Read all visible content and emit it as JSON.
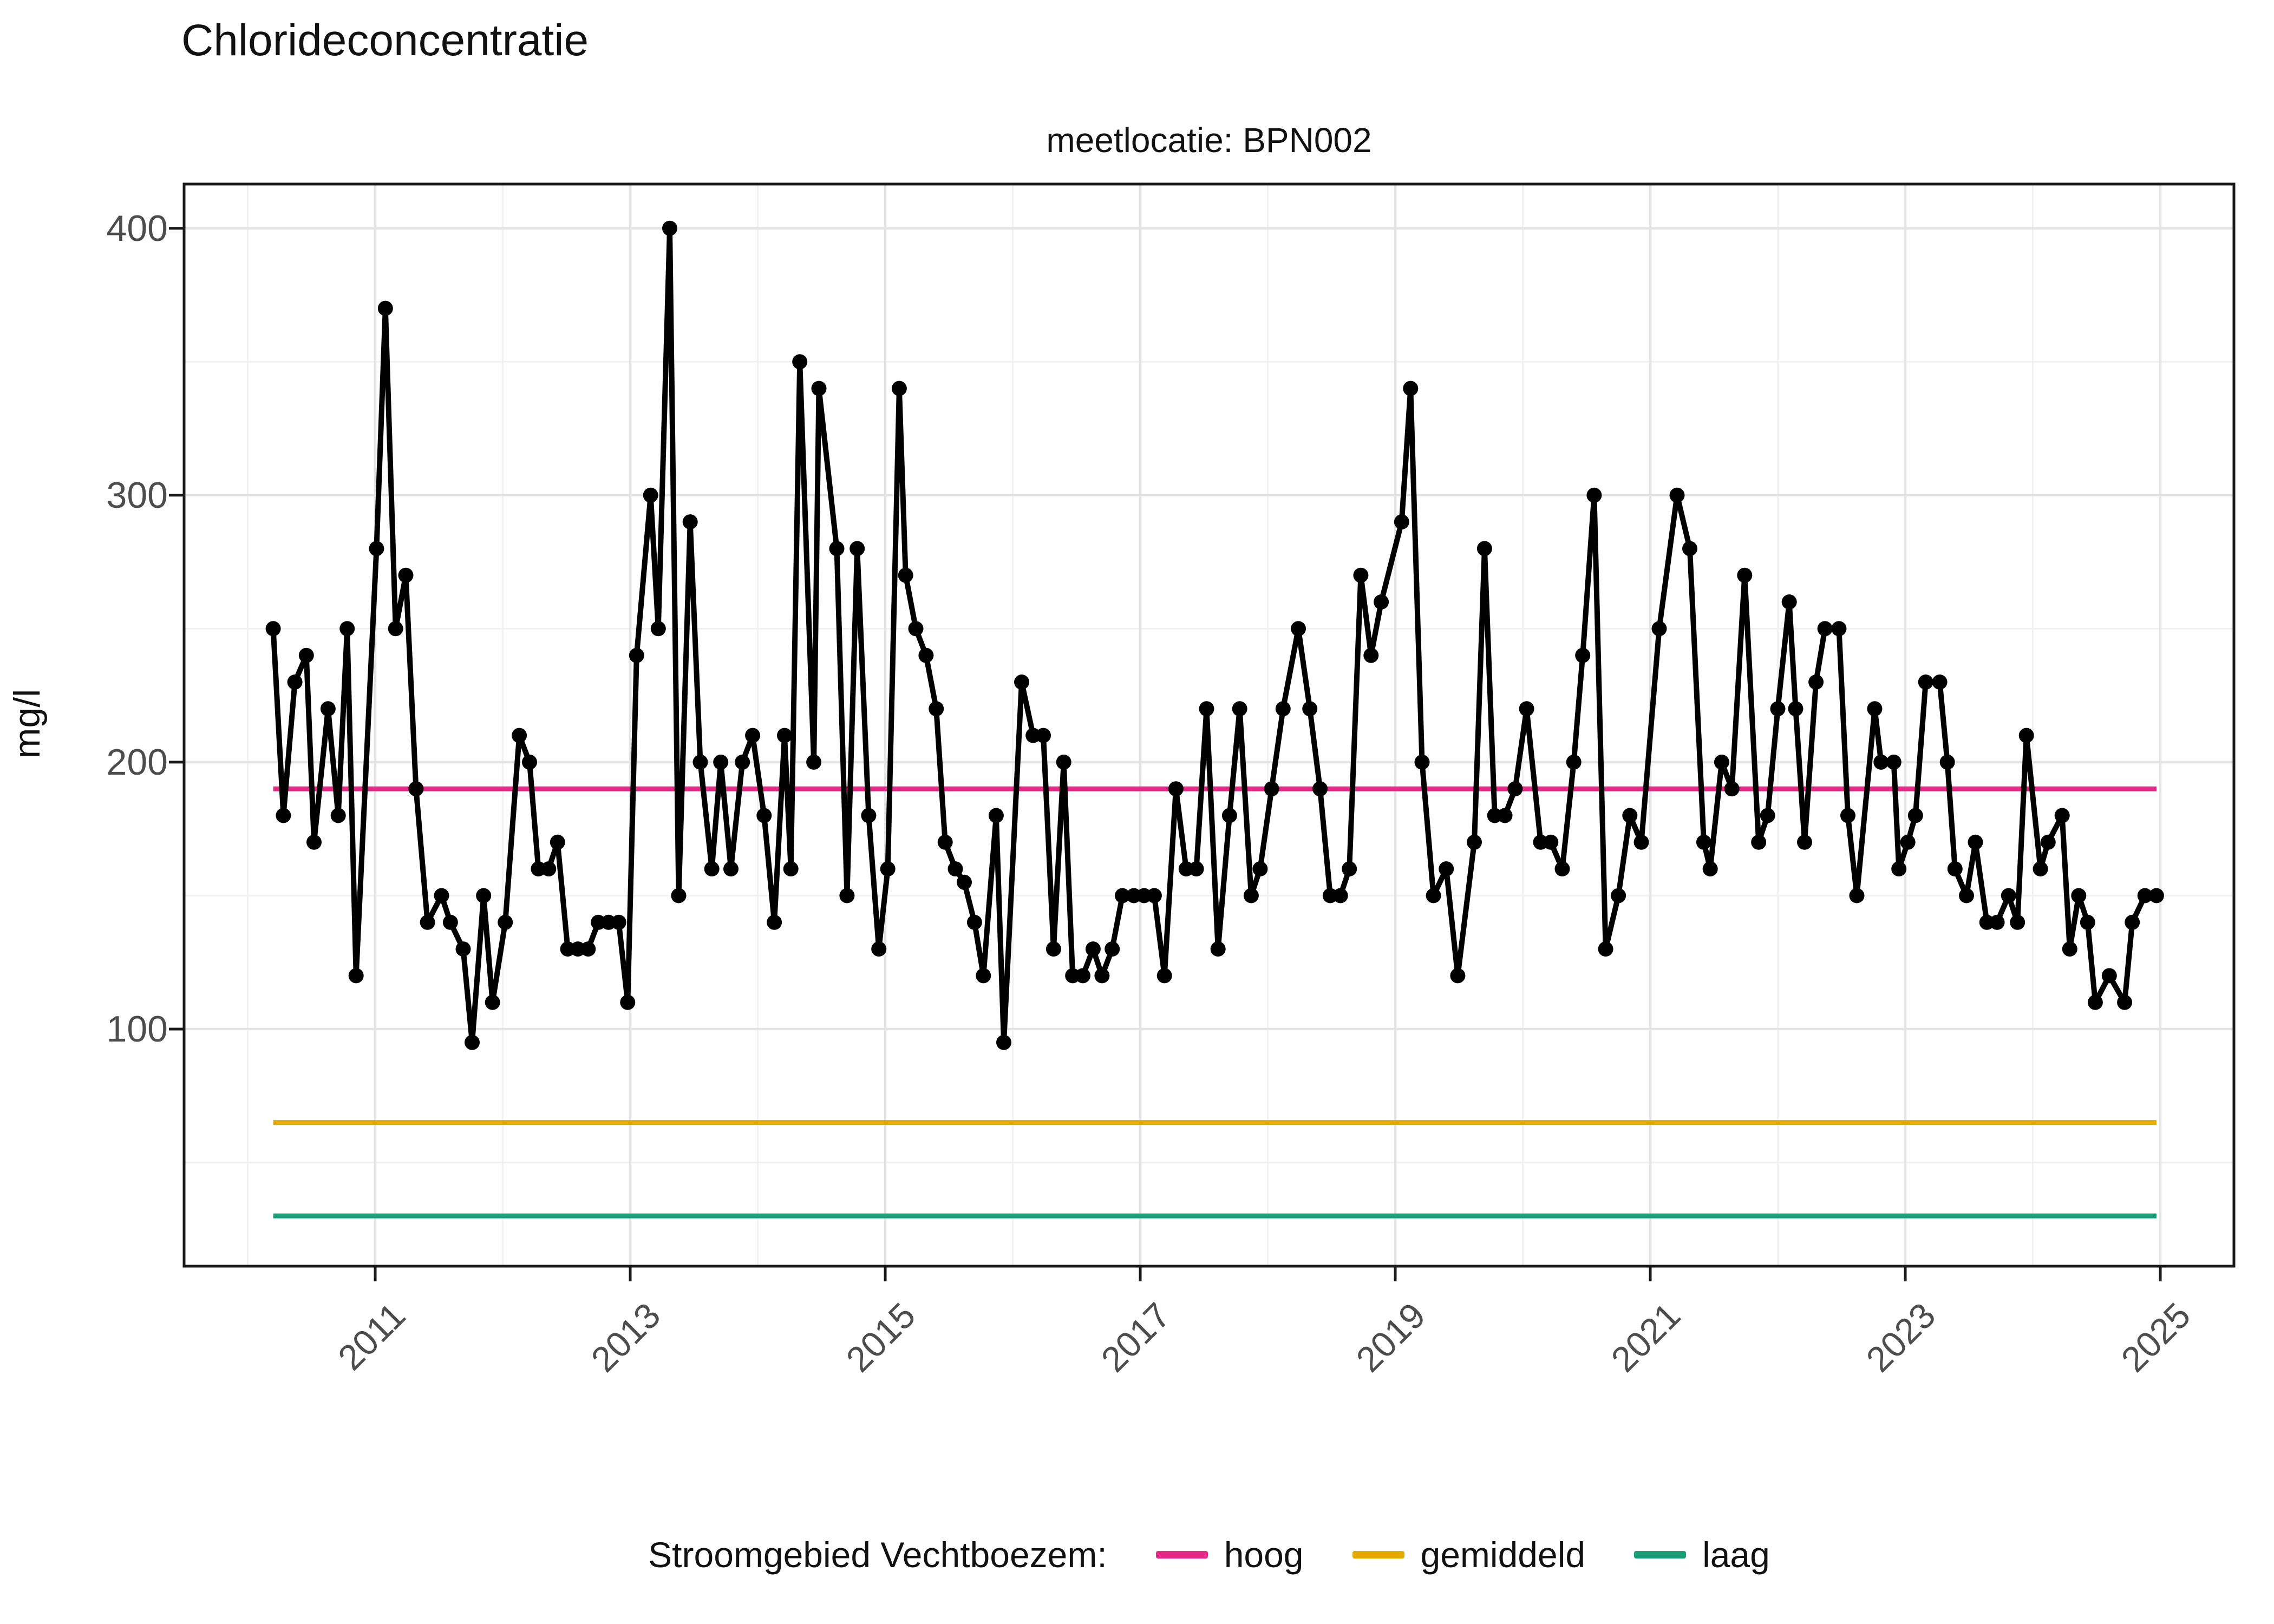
{
  "header": {
    "title": "Chlorideconcentratie",
    "subtitle": "meetlocatie: BPN002"
  },
  "axes": {
    "y_title": "mg/l",
    "y_ticks": [
      100,
      200,
      300,
      400
    ],
    "x_ticks": [
      2011,
      2013,
      2015,
      2017,
      2019,
      2021,
      2023,
      2025
    ]
  },
  "legend": {
    "title": "Stroomgebied Vechtboezem:",
    "items": [
      {
        "label": "hoog",
        "color": "#E7298A"
      },
      {
        "label": "gemiddeld",
        "color": "#E6AB02"
      },
      {
        "label": "laag",
        "color": "#1B9E77"
      }
    ]
  },
  "chart_data": {
    "type": "line",
    "title": "Chlorideconcentratie",
    "subtitle": "meetlocatie: BPN002",
    "xlabel": "",
    "ylabel": "mg/l",
    "xlim": [
      2009.5,
      2025.58
    ],
    "ylim": [
      11,
      417
    ],
    "grid": "on",
    "legend_position": "bottom",
    "x_major_ticks": [
      2011,
      2013,
      2015,
      2017,
      2019,
      2021,
      2023,
      2025
    ],
    "x_minor_ticks": [
      2010,
      2012,
      2014,
      2016,
      2018,
      2020,
      2022,
      2024
    ],
    "y_major_ticks": [
      100,
      200,
      300,
      400
    ],
    "y_minor_ticks": [
      50,
      150,
      250,
      350
    ],
    "reference_lines": [
      {
        "name": "hoog",
        "value": 190,
        "color": "#E7298A"
      },
      {
        "name": "gemiddeld",
        "value": 65,
        "color": "#E6AB02"
      },
      {
        "name": "laag",
        "value": 30,
        "color": "#1B9E77"
      }
    ],
    "series": [
      {
        "name": "chlorideconcentratie BPN002",
        "color": "#000000",
        "points": [
          [
            2010.2,
            250
          ],
          [
            2010.28,
            180
          ],
          [
            2010.37,
            230
          ],
          [
            2010.46,
            240
          ],
          [
            2010.52,
            170
          ],
          [
            2010.63,
            220
          ],
          [
            2010.71,
            180
          ],
          [
            2010.78,
            250
          ],
          [
            2010.85,
            120
          ],
          [
            2011.01,
            280
          ],
          [
            2011.08,
            370
          ],
          [
            2011.16,
            250
          ],
          [
            2011.24,
            270
          ],
          [
            2011.32,
            190
          ],
          [
            2011.41,
            140
          ],
          [
            2011.52,
            150
          ],
          [
            2011.59,
            140
          ],
          [
            2011.69,
            130
          ],
          [
            2011.76,
            95
          ],
          [
            2011.85,
            150
          ],
          [
            2011.92,
            110
          ],
          [
            2012.02,
            140
          ],
          [
            2012.13,
            210
          ],
          [
            2012.21,
            200
          ],
          [
            2012.28,
            160
          ],
          [
            2012.36,
            160
          ],
          [
            2012.43,
            170
          ],
          [
            2012.51,
            130
          ],
          [
            2012.59,
            130
          ],
          [
            2012.67,
            130
          ],
          [
            2012.75,
            140
          ],
          [
            2012.83,
            140
          ],
          [
            2012.91,
            140
          ],
          [
            2012.98,
            110
          ],
          [
            2013.05,
            240
          ],
          [
            2013.16,
            300
          ],
          [
            2013.22,
            250
          ],
          [
            2013.31,
            400
          ],
          [
            2013.38,
            150
          ],
          [
            2013.47,
            290
          ],
          [
            2013.55,
            200
          ],
          [
            2013.64,
            160
          ],
          [
            2013.71,
            200
          ],
          [
            2013.79,
            160
          ],
          [
            2013.88,
            200
          ],
          [
            2013.96,
            210
          ],
          [
            2014.05,
            180
          ],
          [
            2014.13,
            140
          ],
          [
            2014.21,
            210
          ],
          [
            2014.26,
            160
          ],
          [
            2014.33,
            350
          ],
          [
            2014.44,
            200
          ],
          [
            2014.48,
            340
          ],
          [
            2014.62,
            280
          ],
          [
            2014.7,
            150
          ],
          [
            2014.78,
            280
          ],
          [
            2014.87,
            180
          ],
          [
            2014.95,
            130
          ],
          [
            2015.02,
            160
          ],
          [
            2015.11,
            340
          ],
          [
            2015.16,
            270
          ],
          [
            2015.24,
            250
          ],
          [
            2015.32,
            240
          ],
          [
            2015.4,
            220
          ],
          [
            2015.47,
            170
          ],
          [
            2015.55,
            160
          ],
          [
            2015.62,
            155
          ],
          [
            2015.7,
            140
          ],
          [
            2015.77,
            120
          ],
          [
            2015.87,
            180
          ],
          [
            2015.93,
            95
          ],
          [
            2016.07,
            230
          ],
          [
            2016.16,
            210
          ],
          [
            2016.24,
            210
          ],
          [
            2016.32,
            130
          ],
          [
            2016.4,
            200
          ],
          [
            2016.47,
            120
          ],
          [
            2016.55,
            120
          ],
          [
            2016.63,
            130
          ],
          [
            2016.7,
            120
          ],
          [
            2016.78,
            130
          ],
          [
            2016.86,
            150
          ],
          [
            2016.95,
            150
          ],
          [
            2017.03,
            150
          ],
          [
            2017.11,
            150
          ],
          [
            2017.19,
            120
          ],
          [
            2017.28,
            190
          ],
          [
            2017.36,
            160
          ],
          [
            2017.44,
            160
          ],
          [
            2017.52,
            220
          ],
          [
            2017.61,
            130
          ],
          [
            2017.7,
            180
          ],
          [
            2017.78,
            220
          ],
          [
            2017.87,
            150
          ],
          [
            2017.94,
            160
          ],
          [
            2018.03,
            190
          ],
          [
            2018.12,
            220
          ],
          [
            2018.24,
            250
          ],
          [
            2018.33,
            220
          ],
          [
            2018.41,
            190
          ],
          [
            2018.49,
            150
          ],
          [
            2018.57,
            150
          ],
          [
            2018.64,
            160
          ],
          [
            2018.73,
            270
          ],
          [
            2018.81,
            240
          ],
          [
            2018.89,
            260
          ],
          [
            2019.05,
            290
          ],
          [
            2019.12,
            340
          ],
          [
            2019.21,
            200
          ],
          [
            2019.3,
            150
          ],
          [
            2019.4,
            160
          ],
          [
            2019.49,
            120
          ],
          [
            2019.62,
            170
          ],
          [
            2019.7,
            280
          ],
          [
            2019.78,
            180
          ],
          [
            2019.86,
            180
          ],
          [
            2019.94,
            190
          ],
          [
            2020.03,
            220
          ],
          [
            2020.14,
            170
          ],
          [
            2020.22,
            170
          ],
          [
            2020.31,
            160
          ],
          [
            2020.4,
            200
          ],
          [
            2020.47,
            240
          ],
          [
            2020.56,
            300
          ],
          [
            2020.65,
            130
          ],
          [
            2020.75,
            150
          ],
          [
            2020.84,
            180
          ],
          [
            2020.93,
            170
          ],
          [
            2021.07,
            250
          ],
          [
            2021.21,
            300
          ],
          [
            2021.31,
            280
          ],
          [
            2021.42,
            170
          ],
          [
            2021.47,
            160
          ],
          [
            2021.56,
            200
          ],
          [
            2021.64,
            190
          ],
          [
            2021.74,
            270
          ],
          [
            2021.85,
            170
          ],
          [
            2021.92,
            180
          ],
          [
            2022.0,
            220
          ],
          [
            2022.09,
            260
          ],
          [
            2022.14,
            220
          ],
          [
            2022.21,
            170
          ],
          [
            2022.3,
            230
          ],
          [
            2022.37,
            250
          ],
          [
            2022.48,
            250
          ],
          [
            2022.55,
            180
          ],
          [
            2022.62,
            150
          ],
          [
            2022.76,
            220
          ],
          [
            2022.81,
            200
          ],
          [
            2022.91,
            200
          ],
          [
            2022.95,
            160
          ],
          [
            2023.02,
            170
          ],
          [
            2023.08,
            180
          ],
          [
            2023.16,
            230
          ],
          [
            2023.27,
            230
          ],
          [
            2023.33,
            200
          ],
          [
            2023.39,
            160
          ],
          [
            2023.48,
            150
          ],
          [
            2023.55,
            170
          ],
          [
            2023.64,
            140
          ],
          [
            2023.72,
            140
          ],
          [
            2023.81,
            150
          ],
          [
            2023.88,
            140
          ],
          [
            2023.95,
            210
          ],
          [
            2024.06,
            160
          ],
          [
            2024.12,
            170
          ],
          [
            2024.23,
            180
          ],
          [
            2024.29,
            130
          ],
          [
            2024.36,
            150
          ],
          [
            2024.43,
            140
          ],
          [
            2024.49,
            110
          ],
          [
            2024.6,
            120
          ],
          [
            2024.72,
            110
          ],
          [
            2024.78,
            140
          ],
          [
            2024.88,
            150
          ],
          [
            2024.97,
            150
          ]
        ]
      }
    ]
  },
  "style": {
    "background": "#ffffff",
    "panel_border": "#1a1a1a",
    "grid_major": "#e4e4e4",
    "grid_minor": "#f1f1f1",
    "tick_label": "#4d4d4d",
    "data_line": "#000000"
  }
}
